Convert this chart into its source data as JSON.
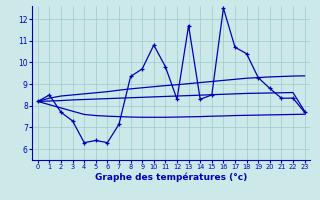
{
  "title": "Graphe des températures (°c)",
  "bg_color": "#cce8e8",
  "line_color": "#0000bb",
  "grid_color": "#99cccc",
  "xlim": [
    -0.5,
    23.5
  ],
  "ylim": [
    5.5,
    12.6
  ],
  "yticks": [
    6,
    7,
    8,
    9,
    10,
    11,
    12
  ],
  "xticks": [
    0,
    1,
    2,
    3,
    4,
    5,
    6,
    7,
    8,
    9,
    10,
    11,
    12,
    13,
    14,
    15,
    16,
    17,
    18,
    19,
    20,
    21,
    22,
    23
  ],
  "hours": [
    0,
    1,
    2,
    3,
    4,
    5,
    6,
    7,
    8,
    9,
    10,
    11,
    12,
    13,
    14,
    15,
    16,
    17,
    18,
    19,
    20,
    21,
    22,
    23
  ],
  "line1": [
    8.2,
    8.5,
    7.7,
    7.3,
    6.3,
    6.4,
    6.3,
    7.15,
    9.35,
    9.7,
    10.8,
    9.8,
    8.3,
    11.7,
    8.3,
    8.5,
    12.5,
    10.7,
    10.4,
    9.3,
    8.8,
    8.35,
    8.35,
    7.7
  ],
  "line2": [
    8.2,
    8.35,
    8.45,
    8.5,
    8.55,
    8.6,
    8.65,
    8.72,
    8.78,
    8.83,
    8.88,
    8.93,
    8.97,
    9.02,
    9.07,
    9.12,
    9.17,
    9.22,
    9.27,
    9.3,
    9.33,
    9.35,
    9.37,
    9.38
  ],
  "line3": [
    8.2,
    8.22,
    8.24,
    8.27,
    8.29,
    8.31,
    8.33,
    8.35,
    8.37,
    8.39,
    8.41,
    8.43,
    8.45,
    8.47,
    8.49,
    8.51,
    8.53,
    8.55,
    8.57,
    8.58,
    8.59,
    8.6,
    8.61,
    7.75
  ],
  "line4": [
    8.2,
    8.05,
    7.9,
    7.75,
    7.6,
    7.55,
    7.52,
    7.5,
    7.48,
    7.47,
    7.47,
    7.47,
    7.48,
    7.49,
    7.5,
    7.52,
    7.53,
    7.55,
    7.56,
    7.57,
    7.58,
    7.59,
    7.6,
    7.61
  ]
}
